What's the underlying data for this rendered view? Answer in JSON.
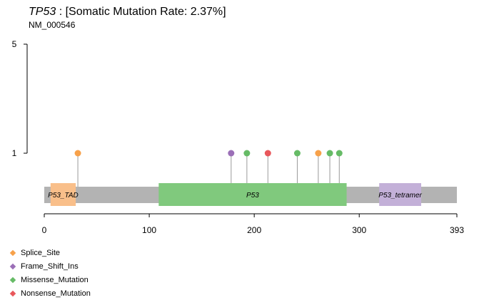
{
  "title": {
    "gene": "TP53",
    "rest": " : [Somatic Mutation Rate: 2.37%]"
  },
  "subtitle": "NM_000546",
  "chart_data": {
    "type": "lollipop",
    "protein_length": 393,
    "x_ticks": [
      0,
      100,
      200,
      300,
      393
    ],
    "y_ticks": [
      1,
      5
    ],
    "domains": [
      {
        "name": "P53_TAD",
        "start": 6,
        "end": 30,
        "color": "#f9bf8a"
      },
      {
        "name": "P53",
        "start": 109,
        "end": 288,
        "color": "#80c97d"
      },
      {
        "name": "P53_tetramer",
        "start": 319,
        "end": 359,
        "color": "#c3b0d8"
      }
    ],
    "mutations": [
      {
        "position": 32,
        "count": 1,
        "type": "Splice_Site"
      },
      {
        "position": 178,
        "count": 1,
        "type": "Frame_Shift_Ins"
      },
      {
        "position": 193,
        "count": 1,
        "type": "Missense_Mutation"
      },
      {
        "position": 213,
        "count": 1,
        "type": "Nonsense_Mutation"
      },
      {
        "position": 241,
        "count": 1,
        "type": "Missense_Mutation"
      },
      {
        "position": 261,
        "count": 1,
        "type": "Splice_Site"
      },
      {
        "position": 272,
        "count": 1,
        "type": "Missense_Mutation"
      },
      {
        "position": 281,
        "count": 1,
        "type": "Missense_Mutation"
      }
    ],
    "legend": [
      {
        "label": "Splice_Site",
        "color": "#f7a14a"
      },
      {
        "label": "Frame_Shift_Ins",
        "color": "#9b6fb7"
      },
      {
        "label": "Missense_Mutation",
        "color": "#66bb66"
      },
      {
        "label": "Nonsense_Mutation",
        "color": "#e8575b"
      }
    ],
    "backbone_color": "#b3b3b3"
  }
}
